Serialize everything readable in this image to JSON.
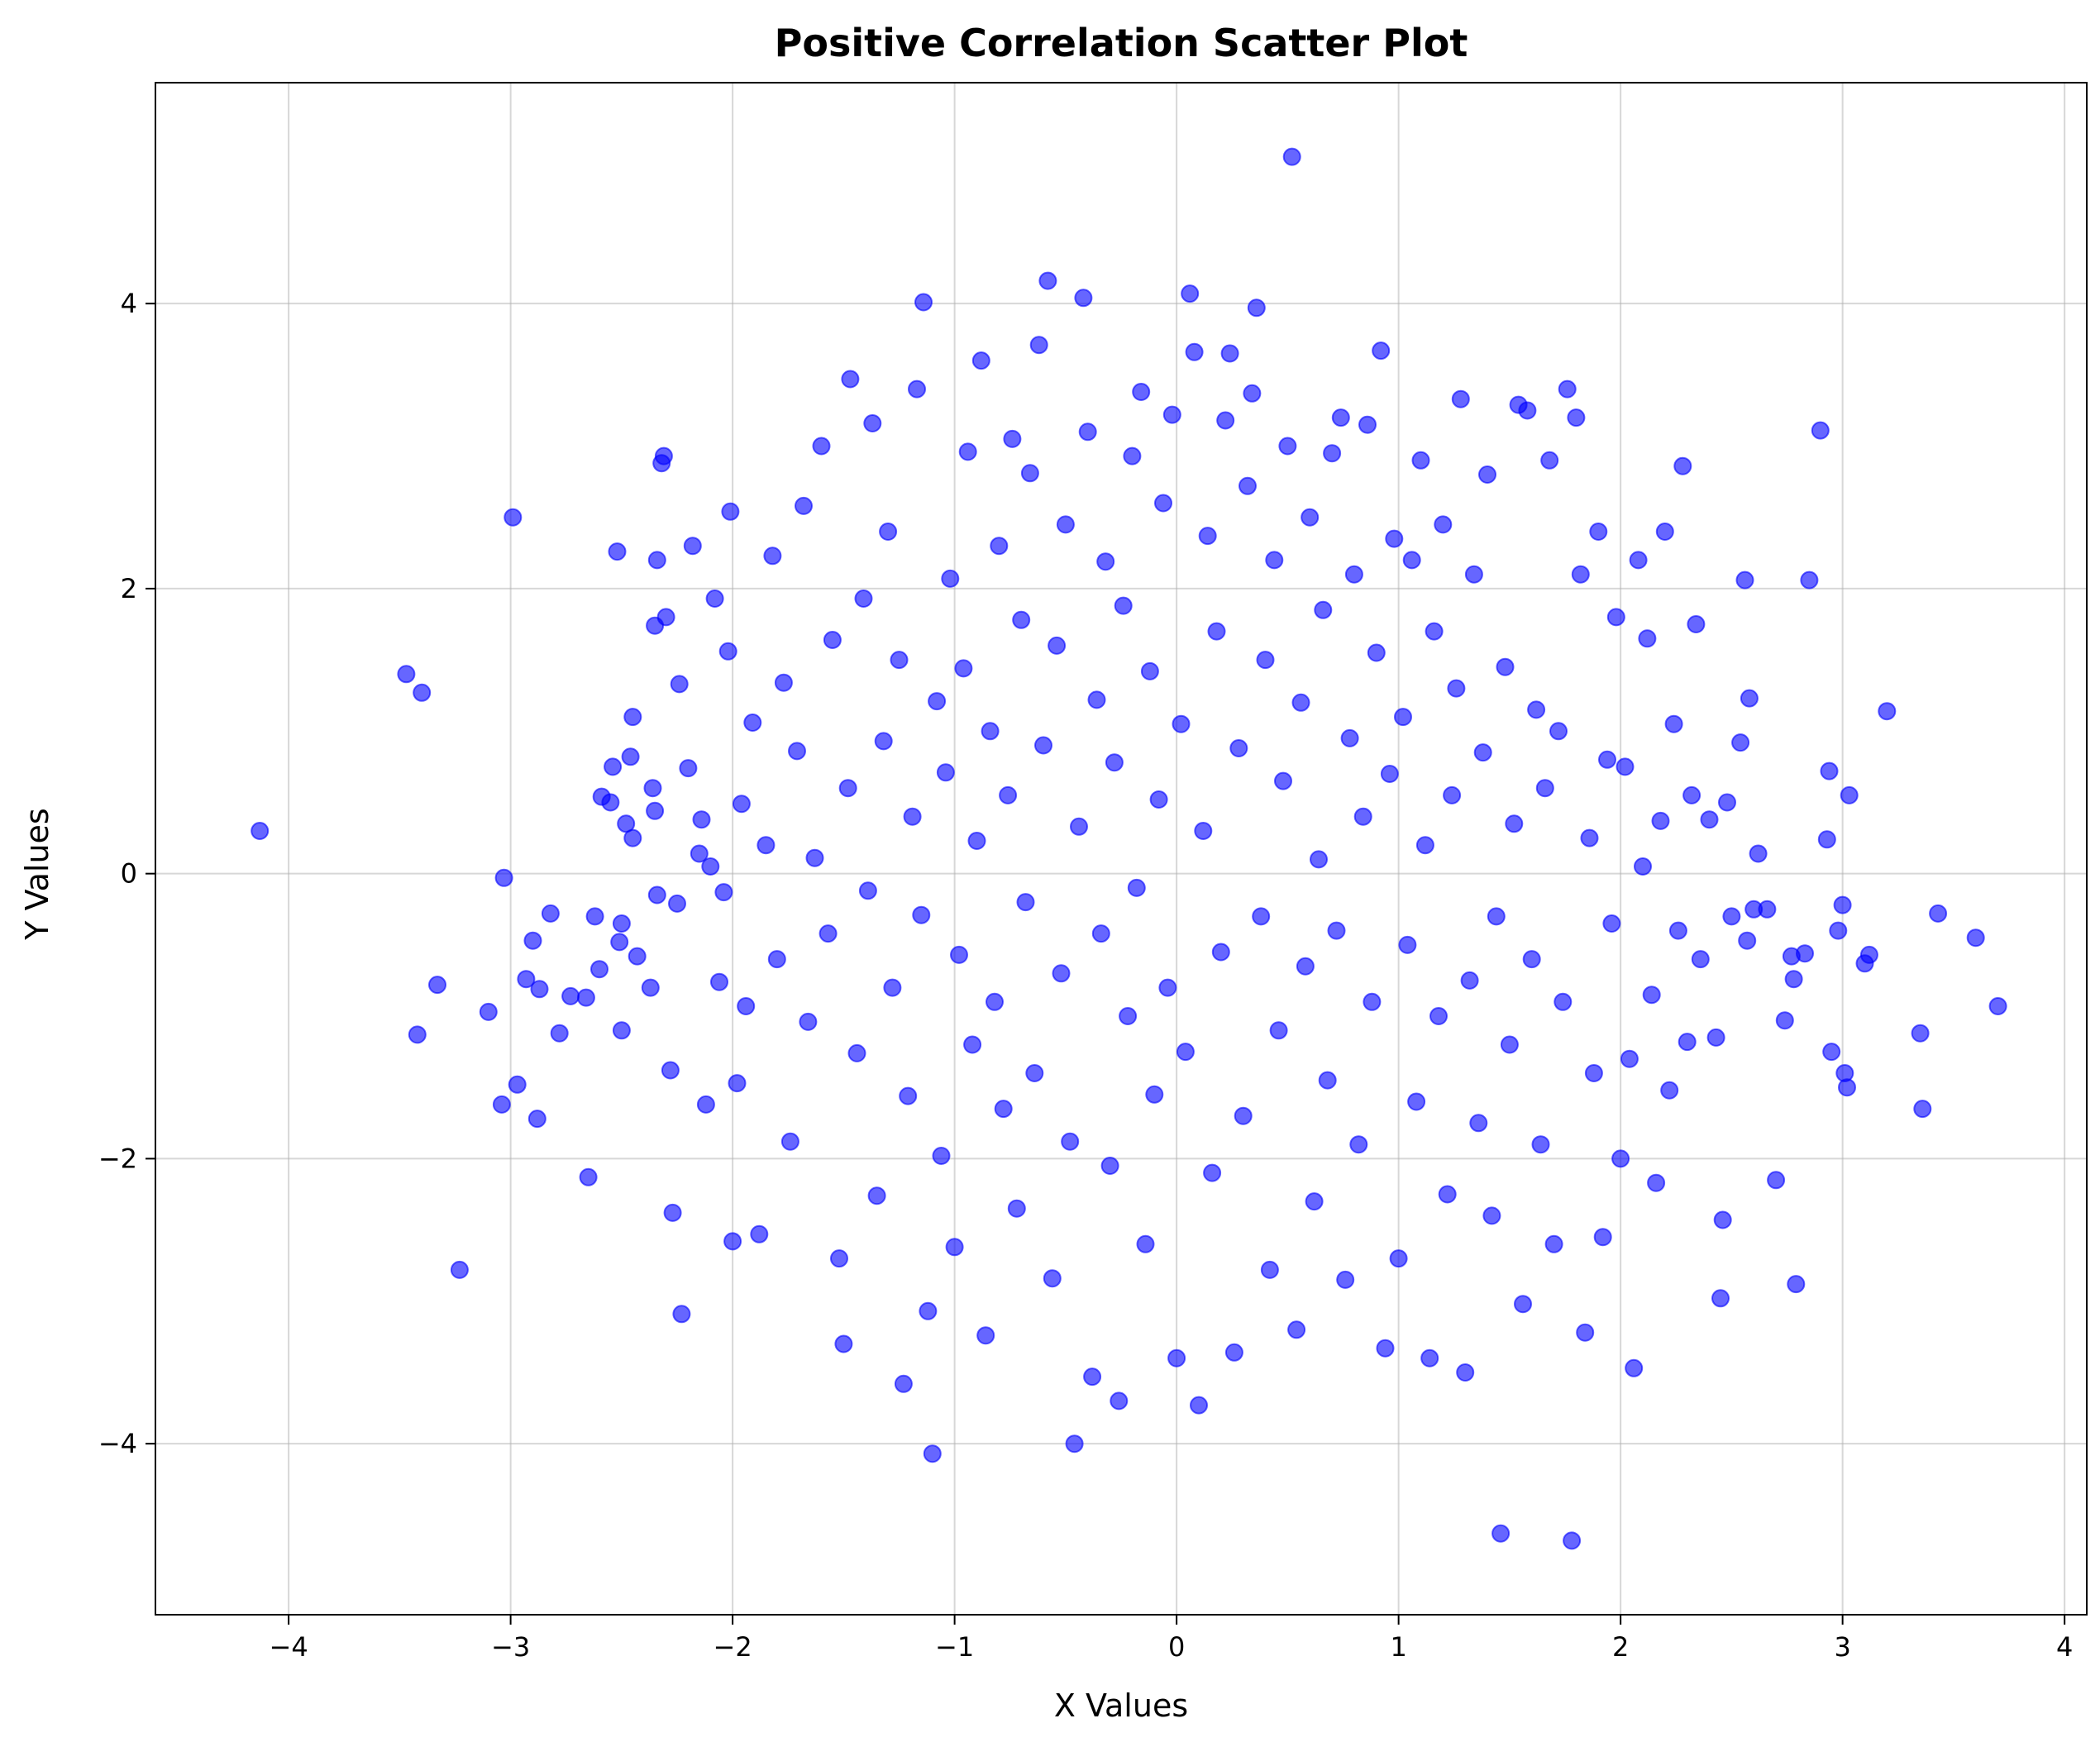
{
  "chart_data": {
    "type": "scatter",
    "title": "Positive Correlation Scatter Plot",
    "xlabel": "X Values",
    "ylabel": "Y Values",
    "xlim": [
      -4.6,
      4.1
    ],
    "ylim": [
      -5.2,
      5.55
    ],
    "x_ticks": [
      -4,
      -3,
      -2,
      -1,
      0,
      1,
      2,
      3,
      4
    ],
    "y_ticks": [
      -4,
      -2,
      0,
      2,
      4
    ],
    "x_tick_labels": [
      "−4",
      "−3",
      "−2",
      "−1",
      "0",
      "1",
      "2",
      "3",
      "4"
    ],
    "y_tick_labels": [
      "−4",
      "−2",
      "0",
      "2",
      "4"
    ],
    "grid": true,
    "legend": "none",
    "point_color": "#0000ff",
    "point_opacity": 0.6,
    "points": [
      [
        -4.13,
        0.3
      ],
      [
        -3.47,
        1.4
      ],
      [
        -3.4,
        1.27
      ],
      [
        -3.42,
        -1.13
      ],
      [
        -3.33,
        -0.78
      ],
      [
        -3.23,
        -2.78
      ],
      [
        -3.1,
        -0.97
      ],
      [
        -3.04,
        -1.62
      ],
      [
        -3.03,
        -0.03
      ],
      [
        -2.99,
        2.5
      ],
      [
        -2.97,
        -1.48
      ],
      [
        -2.93,
        -0.74
      ],
      [
        -2.9,
        -0.47
      ],
      [
        -2.88,
        -1.72
      ],
      [
        -2.87,
        -0.81
      ],
      [
        -2.82,
        -0.28
      ],
      [
        -2.78,
        -1.12
      ],
      [
        -2.73,
        -0.86
      ],
      [
        -2.66,
        -0.87
      ],
      [
        -2.65,
        -2.13
      ],
      [
        -2.62,
        -0.3
      ],
      [
        -2.6,
        -0.67
      ],
      [
        -2.59,
        0.54
      ],
      [
        -2.55,
        0.5
      ],
      [
        -2.54,
        0.75
      ],
      [
        -2.52,
        2.26
      ],
      [
        -2.51,
        -0.48
      ],
      [
        -2.5,
        -1.1
      ],
      [
        -2.5,
        -0.35
      ],
      [
        -2.48,
        0.35
      ],
      [
        -2.46,
        0.82
      ],
      [
        -2.45,
        0.25
      ],
      [
        -2.45,
        1.1
      ],
      [
        -2.43,
        -0.58
      ],
      [
        -2.37,
        -0.8
      ],
      [
        -2.36,
        0.6
      ],
      [
        -2.35,
        0.44
      ],
      [
        -2.35,
        1.74
      ],
      [
        -2.34,
        -0.15
      ],
      [
        -2.34,
        2.2
      ],
      [
        -2.32,
        2.88
      ],
      [
        -2.31,
        2.93
      ],
      [
        -2.3,
        1.8
      ],
      [
        -2.28,
        -1.38
      ],
      [
        -2.27,
        -2.38
      ],
      [
        -2.25,
        -0.21
      ],
      [
        -2.24,
        1.33
      ],
      [
        -2.23,
        -3.09
      ],
      [
        -2.2,
        0.74
      ],
      [
        -2.18,
        2.3
      ],
      [
        -2.15,
        0.14
      ],
      [
        -2.14,
        0.38
      ],
      [
        -2.12,
        -1.62
      ],
      [
        -2.1,
        0.05
      ],
      [
        -2.08,
        1.93
      ],
      [
        -2.06,
        -0.76
      ],
      [
        -2.04,
        -0.13
      ],
      [
        -2.02,
        1.56
      ],
      [
        -2.01,
        2.54
      ],
      [
        -2.0,
        -2.58
      ],
      [
        -1.98,
        -1.47
      ],
      [
        -1.96,
        0.49
      ],
      [
        -1.94,
        -0.93
      ],
      [
        -1.91,
        1.06
      ],
      [
        -1.88,
        -2.53
      ],
      [
        -1.85,
        0.2
      ],
      [
        -1.82,
        2.23
      ],
      [
        -1.8,
        -0.6
      ],
      [
        -1.77,
        1.34
      ],
      [
        -1.74,
        -1.88
      ],
      [
        -1.71,
        0.86
      ],
      [
        -1.68,
        2.58
      ],
      [
        -1.66,
        -1.04
      ],
      [
        -1.63,
        0.11
      ],
      [
        -1.6,
        3.0
      ],
      [
        -1.57,
        -0.42
      ],
      [
        -1.55,
        1.64
      ],
      [
        -1.52,
        -2.7
      ],
      [
        -1.5,
        -3.3
      ],
      [
        -1.48,
        0.6
      ],
      [
        -1.47,
        3.47
      ],
      [
        -1.44,
        -1.26
      ],
      [
        -1.41,
        1.93
      ],
      [
        -1.39,
        -0.12
      ],
      [
        -1.37,
        3.16
      ],
      [
        -1.35,
        -2.26
      ],
      [
        -1.32,
        0.93
      ],
      [
        -1.3,
        2.4
      ],
      [
        -1.28,
        -0.8
      ],
      [
        -1.25,
        1.5
      ],
      [
        -1.23,
        -3.58
      ],
      [
        -1.21,
        -1.56
      ],
      [
        -1.19,
        0.4
      ],
      [
        -1.17,
        3.4
      ],
      [
        -1.15,
        -0.29
      ],
      [
        -1.14,
        4.01
      ],
      [
        -1.12,
        -3.07
      ],
      [
        -1.1,
        -4.07
      ],
      [
        -1.08,
        1.21
      ],
      [
        -1.06,
        -1.98
      ],
      [
        -1.04,
        0.71
      ],
      [
        -1.02,
        2.07
      ],
      [
        -1.0,
        -2.62
      ],
      [
        -0.98,
        -0.57
      ],
      [
        -0.96,
        1.44
      ],
      [
        -0.94,
        2.96
      ],
      [
        -0.92,
        -1.2
      ],
      [
        -0.9,
        0.23
      ],
      [
        -0.88,
        3.6
      ],
      [
        -0.86,
        -3.24
      ],
      [
        -0.84,
        1.0
      ],
      [
        -0.82,
        -0.9
      ],
      [
        -0.8,
        2.3
      ],
      [
        -0.78,
        -1.65
      ],
      [
        -0.76,
        0.55
      ],
      [
        -0.74,
        3.05
      ],
      [
        -0.72,
        -2.35
      ],
      [
        -0.7,
        1.78
      ],
      [
        -0.68,
        -0.2
      ],
      [
        -0.66,
        2.81
      ],
      [
        -0.64,
        -1.4
      ],
      [
        -0.62,
        3.71
      ],
      [
        -0.6,
        0.9
      ],
      [
        -0.58,
        4.16
      ],
      [
        -0.56,
        -2.84
      ],
      [
        -0.54,
        1.6
      ],
      [
        -0.52,
        -0.7
      ],
      [
        -0.5,
        2.45
      ],
      [
        -0.48,
        -1.88
      ],
      [
        -0.46,
        -4.0
      ],
      [
        -0.44,
        0.33
      ],
      [
        -0.42,
        4.04
      ],
      [
        -0.4,
        3.1
      ],
      [
        -0.38,
        -3.53
      ],
      [
        -0.36,
        1.22
      ],
      [
        -0.34,
        -0.42
      ],
      [
        -0.32,
        2.19
      ],
      [
        -0.3,
        -2.05
      ],
      [
        -0.28,
        0.78
      ],
      [
        -0.26,
        -3.7
      ],
      [
        -0.24,
        1.88
      ],
      [
        -0.22,
        -1.0
      ],
      [
        -0.2,
        2.93
      ],
      [
        -0.18,
        -0.1
      ],
      [
        -0.16,
        3.38
      ],
      [
        -0.14,
        -2.6
      ],
      [
        -0.12,
        1.42
      ],
      [
        -0.1,
        -1.55
      ],
      [
        -0.08,
        0.52
      ],
      [
        -0.06,
        2.6
      ],
      [
        -0.04,
        -0.8
      ],
      [
        -0.02,
        3.22
      ],
      [
        0.0,
        -3.4
      ],
      [
        0.02,
        1.05
      ],
      [
        0.04,
        -1.25
      ],
      [
        0.06,
        4.07
      ],
      [
        0.08,
        3.66
      ],
      [
        0.1,
        -3.73
      ],
      [
        0.12,
        0.3
      ],
      [
        0.14,
        2.37
      ],
      [
        0.16,
        -2.1
      ],
      [
        0.18,
        1.7
      ],
      [
        0.2,
        -0.55
      ],
      [
        0.22,
        3.18
      ],
      [
        0.24,
        3.65
      ],
      [
        0.26,
        -3.36
      ],
      [
        0.28,
        0.88
      ],
      [
        0.3,
        -1.7
      ],
      [
        0.32,
        2.72
      ],
      [
        0.34,
        3.37
      ],
      [
        0.36,
        3.97
      ],
      [
        0.38,
        -0.3
      ],
      [
        0.4,
        1.5
      ],
      [
        0.42,
        -2.78
      ],
      [
        0.44,
        2.2
      ],
      [
        0.46,
        -1.1
      ],
      [
        0.48,
        0.65
      ],
      [
        0.5,
        3.0
      ],
      [
        0.52,
        5.03
      ],
      [
        0.54,
        -3.2
      ],
      [
        0.56,
        1.2
      ],
      [
        0.58,
        -0.65
      ],
      [
        0.6,
        2.5
      ],
      [
        0.62,
        -2.3
      ],
      [
        0.64,
        0.1
      ],
      [
        0.66,
        1.85
      ],
      [
        0.68,
        -1.45
      ],
      [
        0.7,
        2.95
      ],
      [
        0.72,
        -0.4
      ],
      [
        0.74,
        3.2
      ],
      [
        0.76,
        -2.85
      ],
      [
        0.78,
        0.95
      ],
      [
        0.8,
        2.1
      ],
      [
        0.82,
        -1.9
      ],
      [
        0.84,
        0.4
      ],
      [
        0.86,
        3.15
      ],
      [
        0.88,
        -0.9
      ],
      [
        0.9,
        1.55
      ],
      [
        0.92,
        3.67
      ],
      [
        0.94,
        -3.33
      ],
      [
        0.96,
        0.7
      ],
      [
        0.98,
        2.35
      ],
      [
        1.0,
        -2.7
      ],
      [
        1.02,
        1.1
      ],
      [
        1.04,
        -0.5
      ],
      [
        1.06,
        2.2
      ],
      [
        1.08,
        -1.6
      ],
      [
        1.1,
        2.9
      ],
      [
        1.12,
        0.2
      ],
      [
        1.14,
        -3.4
      ],
      [
        1.16,
        1.7
      ],
      [
        1.18,
        -1.0
      ],
      [
        1.2,
        2.45
      ],
      [
        1.22,
        -2.25
      ],
      [
        1.24,
        0.55
      ],
      [
        1.26,
        1.3
      ],
      [
        1.28,
        3.33
      ],
      [
        1.3,
        -3.5
      ],
      [
        1.32,
        -0.75
      ],
      [
        1.34,
        2.1
      ],
      [
        1.36,
        -1.75
      ],
      [
        1.38,
        0.85
      ],
      [
        1.4,
        2.8
      ],
      [
        1.42,
        -2.4
      ],
      [
        1.44,
        -0.3
      ],
      [
        1.46,
        -4.63
      ],
      [
        1.48,
        1.45
      ],
      [
        1.5,
        -1.2
      ],
      [
        1.52,
        0.35
      ],
      [
        1.54,
        3.29
      ],
      [
        1.56,
        -3.02
      ],
      [
        1.58,
        3.25
      ],
      [
        1.6,
        -0.6
      ],
      [
        1.62,
        1.15
      ],
      [
        1.64,
        -1.9
      ],
      [
        1.66,
        0.6
      ],
      [
        1.68,
        2.9
      ],
      [
        1.7,
        -2.6
      ],
      [
        1.72,
        1.0
      ],
      [
        1.74,
        -0.9
      ],
      [
        1.76,
        3.4
      ],
      [
        1.78,
        -4.68
      ],
      [
        1.8,
        3.2
      ],
      [
        1.82,
        2.1
      ],
      [
        1.84,
        -3.22
      ],
      [
        1.86,
        0.25
      ],
      [
        1.88,
        -1.4
      ],
      [
        1.9,
        2.4
      ],
      [
        1.92,
        -2.55
      ],
      [
        1.94,
        0.8
      ],
      [
        1.96,
        -0.35
      ],
      [
        1.98,
        1.8
      ],
      [
        2.0,
        -2.0
      ],
      [
        2.02,
        0.75
      ],
      [
        2.04,
        -1.3
      ],
      [
        2.06,
        -3.47
      ],
      [
        2.08,
        2.2
      ],
      [
        2.1,
        0.05
      ],
      [
        2.12,
        1.65
      ],
      [
        2.14,
        -0.85
      ],
      [
        2.16,
        -2.17
      ],
      [
        2.18,
        0.37
      ],
      [
        2.2,
        2.4
      ],
      [
        2.22,
        -1.52
      ],
      [
        2.24,
        1.05
      ],
      [
        2.26,
        -0.4
      ],
      [
        2.28,
        2.86
      ],
      [
        2.3,
        -1.18
      ],
      [
        2.32,
        0.55
      ],
      [
        2.34,
        1.75
      ],
      [
        2.36,
        -0.6
      ],
      [
        2.4,
        0.38
      ],
      [
        2.43,
        -1.15
      ],
      [
        2.45,
        -2.98
      ],
      [
        2.46,
        -2.43
      ],
      [
        2.48,
        0.5
      ],
      [
        2.5,
        -0.3
      ],
      [
        2.54,
        0.92
      ],
      [
        2.56,
        2.06
      ],
      [
        2.57,
        -0.47
      ],
      [
        2.58,
        1.23
      ],
      [
        2.6,
        -0.25
      ],
      [
        2.62,
        0.14
      ],
      [
        2.66,
        -0.25
      ],
      [
        2.7,
        -2.15
      ],
      [
        2.74,
        -1.03
      ],
      [
        2.77,
        -0.58
      ],
      [
        2.78,
        -0.74
      ],
      [
        2.79,
        -2.88
      ],
      [
        2.83,
        -0.56
      ],
      [
        2.85,
        2.06
      ],
      [
        2.9,
        3.11
      ],
      [
        2.93,
        0.24
      ],
      [
        2.94,
        0.72
      ],
      [
        2.95,
        -1.25
      ],
      [
        2.98,
        -0.4
      ],
      [
        3.0,
        -0.22
      ],
      [
        3.01,
        -1.4
      ],
      [
        3.02,
        -1.5
      ],
      [
        3.03,
        0.55
      ],
      [
        3.1,
        -0.63
      ],
      [
        3.12,
        -0.57
      ],
      [
        3.2,
        1.14
      ],
      [
        3.35,
        -1.12
      ],
      [
        3.36,
        -1.65
      ],
      [
        3.43,
        -0.28
      ],
      [
        3.6,
        -0.45
      ],
      [
        3.7,
        -0.93
      ]
    ]
  }
}
